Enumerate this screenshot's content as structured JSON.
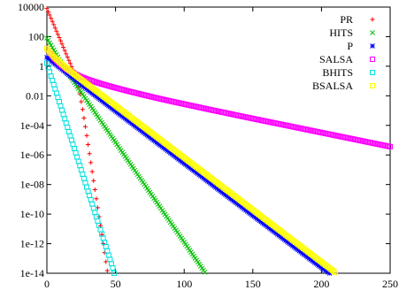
{
  "chart_data": {
    "type": "scatter",
    "title": "",
    "xlabel": "",
    "ylabel": "",
    "xlim": [
      0,
      250
    ],
    "ylim_log10": [
      -14,
      4
    ],
    "y_scale": "log",
    "grid": false,
    "legend_position": "top-right",
    "x_ticks": [
      {
        "value": 0,
        "label": "0"
      },
      {
        "value": 50,
        "label": "50"
      },
      {
        "value": 100,
        "label": "100"
      },
      {
        "value": 150,
        "label": "150"
      },
      {
        "value": 200,
        "label": "200"
      },
      {
        "value": 250,
        "label": "250"
      }
    ],
    "y_ticks": [
      {
        "exp": 4,
        "label": "10000"
      },
      {
        "exp": 2,
        "label": "100"
      },
      {
        "exp": 0,
        "label": "1"
      },
      {
        "exp": -2,
        "label": "0.01"
      },
      {
        "exp": -4,
        "label": "1e-04"
      },
      {
        "exp": -6,
        "label": "1e-06"
      },
      {
        "exp": -8,
        "label": "1e-08"
      },
      {
        "exp": -10,
        "label": "1e-10"
      },
      {
        "exp": -12,
        "label": "1e-12"
      },
      {
        "exp": -14,
        "label": "1e-14"
      }
    ],
    "series": [
      {
        "name": "PR",
        "color": "#ff0000",
        "marker": "plus",
        "points": [
          [
            0,
            3.9
          ],
          [
            2,
            3.46
          ],
          [
            4,
            3.03
          ],
          [
            6,
            2.59
          ],
          [
            8,
            2.15
          ],
          [
            10,
            1.72
          ],
          [
            12,
            1.28
          ],
          [
            14,
            0.84
          ],
          [
            16,
            0.4
          ],
          [
            18,
            -0.03
          ],
          [
            20,
            -0.47
          ],
          [
            22,
            -1.05
          ],
          [
            24,
            -1.87
          ],
          [
            26,
            -2.92
          ],
          [
            28,
            -4.09
          ],
          [
            30,
            -5.3
          ],
          [
            32,
            -6.52
          ],
          [
            34,
            -7.74
          ],
          [
            36,
            -8.96
          ],
          [
            38,
            -10.18
          ],
          [
            40,
            -11.39
          ],
          [
            42,
            -12.61
          ],
          [
            44,
            -13.83
          ]
        ]
      },
      {
        "name": "HITS",
        "color": "#00c000",
        "marker": "cross",
        "points": [
          [
            0,
            1.9
          ],
          [
            5,
            1.1
          ],
          [
            10,
            0.3
          ],
          [
            15,
            -0.43
          ],
          [
            20,
            -1.1
          ],
          [
            25,
            -1.77
          ],
          [
            30,
            -2.45
          ],
          [
            35,
            -3.13
          ],
          [
            40,
            -3.8
          ],
          [
            45,
            -4.48
          ],
          [
            50,
            -5.15
          ],
          [
            55,
            -5.83
          ],
          [
            60,
            -6.5
          ],
          [
            65,
            -7.18
          ],
          [
            70,
            -7.85
          ],
          [
            75,
            -8.53
          ],
          [
            80,
            -9.2
          ],
          [
            85,
            -9.88
          ],
          [
            90,
            -10.55
          ],
          [
            95,
            -11.23
          ],
          [
            100,
            -11.9
          ],
          [
            105,
            -12.58
          ],
          [
            110,
            -13.25
          ],
          [
            115,
            -13.93
          ]
        ]
      },
      {
        "name": "P",
        "color": "#0000ff",
        "marker": "star",
        "points": [
          [
            0,
            0.6
          ],
          [
            5,
            0.23
          ],
          [
            10,
            -0.13
          ],
          [
            15,
            -0.5
          ],
          [
            20,
            -0.87
          ],
          [
            30,
            -1.6
          ],
          [
            40,
            -2.32
          ],
          [
            50,
            -3.03
          ],
          [
            60,
            -3.73
          ],
          [
            70,
            -4.44
          ],
          [
            80,
            -5.15
          ],
          [
            90,
            -5.85
          ],
          [
            100,
            -6.56
          ],
          [
            110,
            -7.26
          ],
          [
            120,
            -7.97
          ],
          [
            130,
            -8.68
          ],
          [
            140,
            -9.38
          ],
          [
            150,
            -10.09
          ],
          [
            160,
            -10.79
          ],
          [
            170,
            -11.5
          ],
          [
            180,
            -12.21
          ],
          [
            190,
            -12.91
          ],
          [
            200,
            -13.62
          ],
          [
            206,
            -14.0
          ]
        ]
      },
      {
        "name": "SALSA",
        "color": "#ff00ff",
        "marker": "square",
        "points": [
          [
            0,
            1.2
          ],
          [
            5,
            0.56
          ],
          [
            10,
            0.1
          ],
          [
            15,
            -0.24
          ],
          [
            20,
            -0.5
          ],
          [
            25,
            -0.72
          ],
          [
            30,
            -0.9
          ],
          [
            40,
            -1.2
          ],
          [
            50,
            -1.46
          ],
          [
            60,
            -1.7
          ],
          [
            70,
            -1.93
          ],
          [
            80,
            -2.15
          ],
          [
            90,
            -2.36
          ],
          [
            100,
            -2.56
          ],
          [
            110,
            -2.76
          ],
          [
            120,
            -2.96
          ],
          [
            130,
            -3.15
          ],
          [
            140,
            -3.35
          ],
          [
            150,
            -3.54
          ],
          [
            160,
            -3.73
          ],
          [
            170,
            -3.92
          ],
          [
            180,
            -4.11
          ],
          [
            190,
            -4.3
          ],
          [
            200,
            -4.49
          ],
          [
            210,
            -4.68
          ],
          [
            220,
            -4.87
          ],
          [
            230,
            -5.06
          ],
          [
            240,
            -5.25
          ],
          [
            250,
            -5.44
          ]
        ]
      },
      {
        "name": "BHITS",
        "color": "#00e0e0",
        "marker": "square",
        "points": [
          [
            0,
            0.2
          ],
          [
            4,
            -0.96
          ],
          [
            8,
            -2.11
          ],
          [
            12,
            -3.26
          ],
          [
            16,
            -4.42
          ],
          [
            20,
            -5.57
          ],
          [
            24,
            -6.72
          ],
          [
            28,
            -7.88
          ],
          [
            32,
            -9.03
          ],
          [
            36,
            -10.18
          ],
          [
            40,
            -11.34
          ],
          [
            44,
            -12.49
          ],
          [
            48,
            -13.64
          ],
          [
            49,
            -14.0
          ]
        ]
      },
      {
        "name": "BSALSA",
        "color": "#ffff00",
        "marker": "square",
        "points": [
          [
            0,
            1.2
          ],
          [
            5,
            0.64
          ],
          [
            10,
            0.21
          ],
          [
            15,
            -0.19
          ],
          [
            20,
            -0.55
          ],
          [
            30,
            -1.26
          ],
          [
            40,
            -1.96
          ],
          [
            50,
            -2.67
          ],
          [
            60,
            -3.37
          ],
          [
            70,
            -4.08
          ],
          [
            80,
            -4.78
          ],
          [
            90,
            -5.49
          ],
          [
            100,
            -6.19
          ],
          [
            110,
            -6.9
          ],
          [
            120,
            -7.6
          ],
          [
            130,
            -8.31
          ],
          [
            140,
            -9.01
          ],
          [
            150,
            -9.72
          ],
          [
            160,
            -10.43
          ],
          [
            170,
            -11.13
          ],
          [
            180,
            -11.84
          ],
          [
            190,
            -12.54
          ],
          [
            200,
            -13.25
          ],
          [
            210,
            -13.95
          ]
        ]
      }
    ]
  }
}
